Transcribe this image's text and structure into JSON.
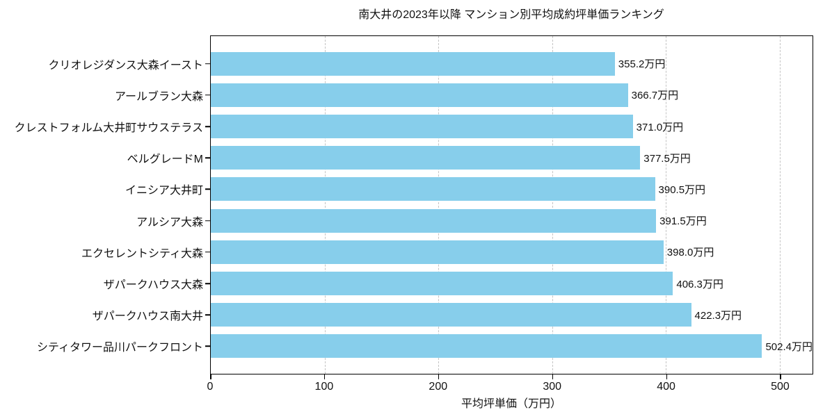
{
  "chart_data": {
    "type": "bar",
    "orientation": "horizontal",
    "title": "南大井の2023年以降 マンション別平均成約坪単価ランキング",
    "categories": [
      "クリオレジダンス大森イースト",
      "アールブラン大森",
      "クレストフォルム大井町サウステラス",
      "ベルグレードM",
      "イニシア大井町",
      "アルシア大森",
      "エクセレントシティ大森",
      "ザパークハウス大森",
      "ザパークハウス南大井",
      "シティタワー品川パークフロント"
    ],
    "values": [
      355.2,
      366.7,
      371.0,
      377.5,
      390.5,
      391.5,
      398.0,
      406.3,
      422.3,
      502.4
    ],
    "value_labels": [
      "355.2万円",
      "366.7万円",
      "371.0万円",
      "377.5万円",
      "390.5万円",
      "391.5万円",
      "398.0万円",
      "406.3万円",
      "422.3万円",
      "502.4万円"
    ],
    "xlabel": "平均坪単価（万円）",
    "ylabel": "",
    "xlim": [
      0,
      529
    ],
    "xticks": [
      0,
      100,
      200,
      300,
      400,
      500
    ],
    "xtick_labels": [
      "0",
      "100",
      "200",
      "300",
      "400",
      "500"
    ],
    "grid": "vertical-dashed",
    "legend": "none",
    "bar_color": "#87CEEB",
    "grid_color": "#c4c4c4",
    "spine_color": "#000000",
    "background_color": "#ffffff",
    "text_color": "#111111"
  }
}
